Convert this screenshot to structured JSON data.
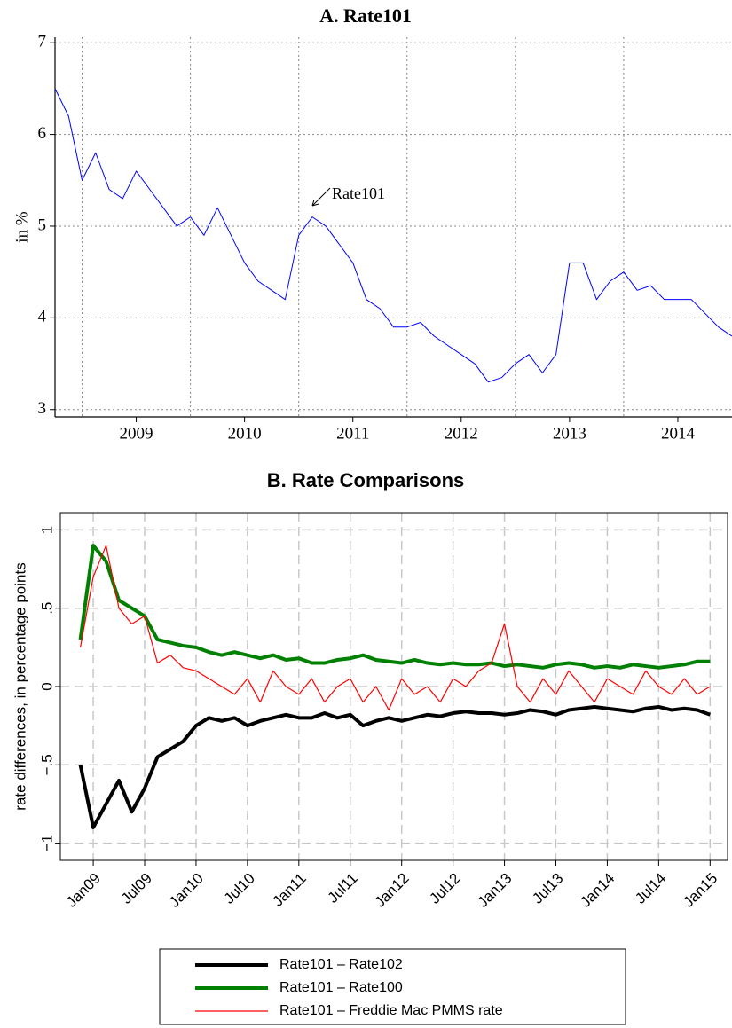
{
  "chart_data": [
    {
      "type": "line",
      "title": "A. Rate101",
      "y_label": "in %",
      "annotation": "Rate101",
      "xlim": [
        2008.75,
        2015.0
      ],
      "ylim": [
        2.92,
        7.06
      ],
      "yticks": [
        3,
        4,
        5,
        6,
        7
      ],
      "xticks": [
        {
          "value": 2009.5,
          "label": "2009"
        },
        {
          "value": 2010.5,
          "label": "2010"
        },
        {
          "value": 2011.5,
          "label": "2011"
        },
        {
          "value": 2012.5,
          "label": "2012"
        },
        {
          "value": 2013.5,
          "label": "2013"
        },
        {
          "value": 2014.5,
          "label": "2014"
        }
      ],
      "xgrid": [
        2009,
        2010,
        2011,
        2012,
        2013,
        2014
      ],
      "grid": true,
      "x": [
        2008.75,
        2008.875,
        2009.0,
        2009.125,
        2009.25,
        2009.375,
        2009.5,
        2009.625,
        2009.75,
        2009.875,
        2010.0,
        2010.125,
        2010.25,
        2010.375,
        2010.5,
        2010.625,
        2010.75,
        2010.875,
        2011.0,
        2011.125,
        2011.25,
        2011.375,
        2011.5,
        2011.625,
        2011.75,
        2011.875,
        2012.0,
        2012.125,
        2012.25,
        2012.375,
        2012.5,
        2012.625,
        2012.75,
        2012.875,
        2013.0,
        2013.125,
        2013.25,
        2013.375,
        2013.5,
        2013.625,
        2013.75,
        2013.875,
        2014.0,
        2014.125,
        2014.25,
        2014.375,
        2014.5,
        2014.625,
        2014.75,
        2014.875,
        2015.0
      ],
      "series": [
        {
          "color": "#0000ff",
          "line_width": 1,
          "values": [
            6.5,
            6.2,
            5.5,
            5.8,
            5.4,
            5.3,
            5.6,
            5.4,
            5.2,
            5.0,
            5.1,
            4.9,
            5.2,
            4.9,
            4.6,
            4.4,
            4.3,
            4.2,
            4.9,
            5.1,
            5.0,
            4.8,
            4.6,
            4.2,
            4.1,
            3.9,
            3.9,
            3.95,
            3.8,
            3.7,
            3.6,
            3.5,
            3.3,
            3.35,
            3.5,
            3.6,
            3.4,
            3.6,
            4.6,
            4.6,
            4.2,
            4.4,
            4.5,
            4.3,
            4.35,
            4.2,
            4.2,
            4.2,
            4.05,
            3.9,
            3.8
          ]
        }
      ]
    },
    {
      "type": "line",
      "title": "B. Rate Comparisons",
      "y_label": "rate differences, in percentage points",
      "xlim": [
        2008.68,
        2015.17
      ],
      "ylim": [
        -1.11,
        1.11
      ],
      "yticks": [
        1,
        {
          "value": 0.5,
          "label": ".5"
        },
        0,
        {
          "value": -0.5,
          "label": "−.5"
        },
        {
          "value": -1,
          "label": "−1"
        }
      ],
      "xticks": [
        {
          "value": 2009.0,
          "label": "Jan09"
        },
        {
          "value": 2009.5,
          "label": "Jul09"
        },
        {
          "value": 2010.0,
          "label": "Jan10"
        },
        {
          "value": 2010.5,
          "label": "Jul10"
        },
        {
          "value": 2011.0,
          "label": "Jan11"
        },
        {
          "value": 2011.5,
          "label": "Jul11"
        },
        {
          "value": 2012.0,
          "label": "Jan12"
        },
        {
          "value": 2012.5,
          "label": "Jul12"
        },
        {
          "value": 2013.0,
          "label": "Jan13"
        },
        {
          "value": 2013.5,
          "label": "Jul13"
        },
        {
          "value": 2014.0,
          "label": "Jan14"
        },
        {
          "value": 2014.5,
          "label": "Jul14"
        },
        {
          "value": 2015.0,
          "label": "Jan15"
        }
      ],
      "grid": true,
      "legend": "bottom",
      "x": [
        2008.875,
        2009.0,
        2009.125,
        2009.25,
        2009.375,
        2009.5,
        2009.625,
        2009.75,
        2009.875,
        2010.0,
        2010.125,
        2010.25,
        2010.375,
        2010.5,
        2010.625,
        2010.75,
        2010.875,
        2011.0,
        2011.125,
        2011.25,
        2011.375,
        2011.5,
        2011.625,
        2011.75,
        2011.875,
        2012.0,
        2012.125,
        2012.25,
        2012.375,
        2012.5,
        2012.625,
        2012.75,
        2012.875,
        2013.0,
        2013.125,
        2013.25,
        2013.375,
        2013.5,
        2013.625,
        2013.75,
        2013.875,
        2014.0,
        2014.125,
        2014.25,
        2014.375,
        2014.5,
        2014.625,
        2014.75,
        2014.875,
        2015.0
      ],
      "series": [
        {
          "name": "Rate101 – Rate102",
          "color": "#000000",
          "line_width": 4,
          "values": [
            -0.5,
            -0.9,
            -0.75,
            -0.6,
            -0.8,
            -0.65,
            -0.45,
            -0.4,
            -0.35,
            -0.25,
            -0.2,
            -0.22,
            -0.2,
            -0.25,
            -0.22,
            -0.2,
            -0.18,
            -0.2,
            -0.2,
            -0.17,
            -0.2,
            -0.18,
            -0.25,
            -0.22,
            -0.2,
            -0.22,
            -0.2,
            -0.18,
            -0.19,
            -0.17,
            -0.16,
            -0.17,
            -0.17,
            -0.18,
            -0.17,
            -0.15,
            -0.16,
            -0.18,
            -0.15,
            -0.14,
            -0.13,
            -0.14,
            -0.15,
            -0.16,
            -0.14,
            -0.13,
            -0.15,
            -0.14,
            -0.15,
            -0.18
          ]
        },
        {
          "name": "Rate101 – Rate100",
          "color": "#008000",
          "line_width": 4,
          "values": [
            0.3,
            0.9,
            0.8,
            0.55,
            0.5,
            0.45,
            0.3,
            0.28,
            0.26,
            0.25,
            0.22,
            0.2,
            0.22,
            0.2,
            0.18,
            0.2,
            0.17,
            0.18,
            0.15,
            0.15,
            0.17,
            0.18,
            0.2,
            0.17,
            0.16,
            0.15,
            0.17,
            0.15,
            0.14,
            0.15,
            0.14,
            0.14,
            0.15,
            0.13,
            0.14,
            0.13,
            0.12,
            0.14,
            0.15,
            0.14,
            0.12,
            0.13,
            0.12,
            0.14,
            0.13,
            0.12,
            0.13,
            0.14,
            0.16,
            0.16
          ]
        },
        {
          "name": "Rate101 – Freddie Mac PMMS rate",
          "color": "#ff0000",
          "line_width": 1.2,
          "values": [
            0.25,
            0.7,
            0.9,
            0.5,
            0.4,
            0.45,
            0.15,
            0.2,
            0.12,
            0.1,
            0.05,
            0.0,
            -0.05,
            0.05,
            -0.1,
            0.1,
            0.0,
            -0.05,
            0.05,
            -0.1,
            0.0,
            0.05,
            -0.1,
            0.0,
            -0.15,
            0.05,
            -0.05,
            0.0,
            -0.1,
            0.05,
            0.0,
            0.1,
            0.15,
            0.4,
            0.0,
            -0.1,
            0.05,
            -0.05,
            0.1,
            0.0,
            -0.1,
            0.05,
            0.0,
            -0.05,
            0.1,
            0.0,
            -0.05,
            0.05,
            -0.05,
            0.0
          ]
        }
      ]
    }
  ]
}
